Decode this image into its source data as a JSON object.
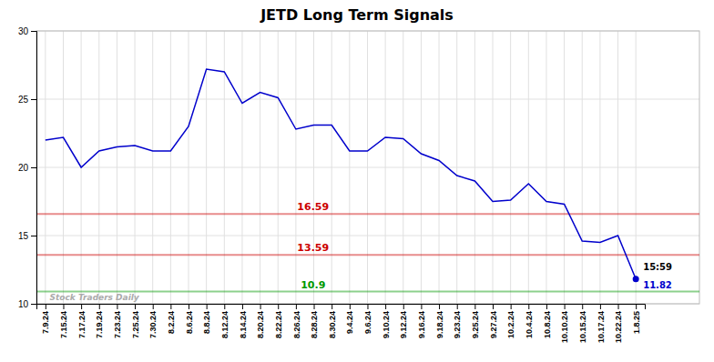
{
  "chart_data": {
    "type": "line",
    "title": "JETD Long Term Signals",
    "categories": [
      "7.9.24",
      "7.15.24",
      "7.17.24",
      "7.19.24",
      "7.23.24",
      "7.25.24",
      "7.30.24",
      "8.2.24",
      "8.6.24",
      "8.8.24",
      "8.12.24",
      "8.14.24",
      "8.20.24",
      "8.22.24",
      "8.26.24",
      "8.28.24",
      "8.30.24",
      "9.4.24",
      "9.6.24",
      "9.10.24",
      "9.12.24",
      "9.16.24",
      "9.18.24",
      "9.23.24",
      "9.25.24",
      "9.27.24",
      "10.2.24",
      "10.4.24",
      "10.8.24",
      "10.10.24",
      "10.15.24",
      "10.17.24",
      "10.22.24",
      "1.8.25"
    ],
    "values": [
      22.0,
      22.2,
      20.0,
      21.2,
      21.5,
      21.6,
      21.2,
      21.2,
      23.0,
      27.2,
      27.0,
      24.7,
      25.5,
      25.1,
      22.8,
      23.1,
      23.1,
      21.2,
      21.2,
      22.2,
      22.1,
      21.0,
      20.5,
      19.4,
      19.0,
      17.5,
      17.6,
      18.8,
      17.5,
      17.3,
      14.6,
      14.5,
      15.0,
      11.82
    ],
    "color": "#0000cc",
    "reference_lines": [
      {
        "value": 16.59,
        "color": "#cc0000"
      },
      {
        "value": 13.59,
        "color": "#cc0000"
      },
      {
        "value": 10.9,
        "color": "#009900"
      }
    ],
    "annotations": [
      "15:59",
      "11.82"
    ],
    "watermark": "Stock Traders Daily",
    "ylim": [
      10,
      30
    ],
    "yticks": [
      10,
      15,
      20,
      25,
      30
    ],
    "grid": true
  }
}
